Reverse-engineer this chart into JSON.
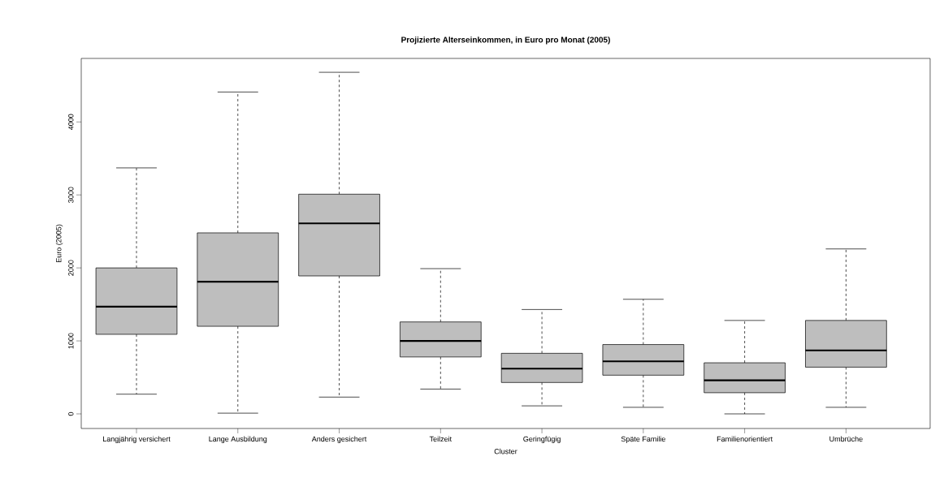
{
  "chart_data": {
    "type": "box",
    "title": "Projizierte Alterseinkommen, in Euro pro Monat (2005)",
    "xlabel": "Cluster",
    "ylabel": "Euro (2005)",
    "categories": [
      "Langjährig versichert",
      "Lange Ausbildung",
      "Anders gesichert",
      "Teilzeit",
      "Geringfügig",
      "Späte Familie",
      "Familienorientiert",
      "Umbrüche"
    ],
    "color": "#bebebe",
    "boxes": [
      {
        "low": 270,
        "q1": 1090,
        "median": 1470,
        "q3": 2000,
        "high": 3370
      },
      {
        "low": 10,
        "q1": 1200,
        "median": 1810,
        "q3": 2480,
        "high": 4410
      },
      {
        "low": 230,
        "q1": 1890,
        "median": 2610,
        "q3": 3010,
        "high": 4680
      },
      {
        "low": 340,
        "q1": 780,
        "median": 1000,
        "q3": 1260,
        "high": 1990
      },
      {
        "low": 110,
        "q1": 430,
        "median": 620,
        "q3": 830,
        "high": 1430
      },
      {
        "low": 90,
        "q1": 530,
        "median": 720,
        "q3": 950,
        "high": 1570
      },
      {
        "low": 0,
        "q1": 290,
        "median": 460,
        "q3": 700,
        "high": 1280
      },
      {
        "low": 90,
        "q1": 640,
        "median": 870,
        "q3": 1280,
        "high": 2260
      }
    ],
    "ylim": [
      -200,
      4870
    ],
    "yticks": [
      0,
      1000,
      2000,
      3000,
      4000
    ]
  }
}
